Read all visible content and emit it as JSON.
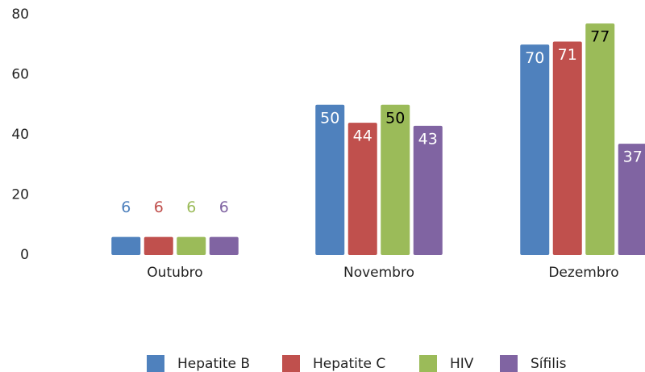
{
  "chart_data": {
    "type": "bar",
    "categories": [
      "Outubro",
      "Novembro",
      "Dezembro"
    ],
    "series": [
      {
        "name": "Hepatite B",
        "color": "#4f81bd",
        "label_color": "#ffffff",
        "values": [
          6,
          50,
          70
        ]
      },
      {
        "name": "Hepatite C",
        "color": "#c0504d",
        "label_color": "#ffffff",
        "values": [
          6,
          44,
          71
        ]
      },
      {
        "name": "HIV",
        "color": "#9bbb59",
        "label_color": "#000000",
        "values": [
          6,
          50,
          77
        ]
      },
      {
        "name": "Sífilis",
        "color": "#8064a2",
        "label_color": "#ffffff",
        "values": [
          6,
          43,
          37
        ]
      }
    ],
    "ylim": [
      0,
      80
    ],
    "yticks": [
      0,
      20,
      40,
      60,
      80
    ],
    "grid": false,
    "legend": "bottom"
  }
}
